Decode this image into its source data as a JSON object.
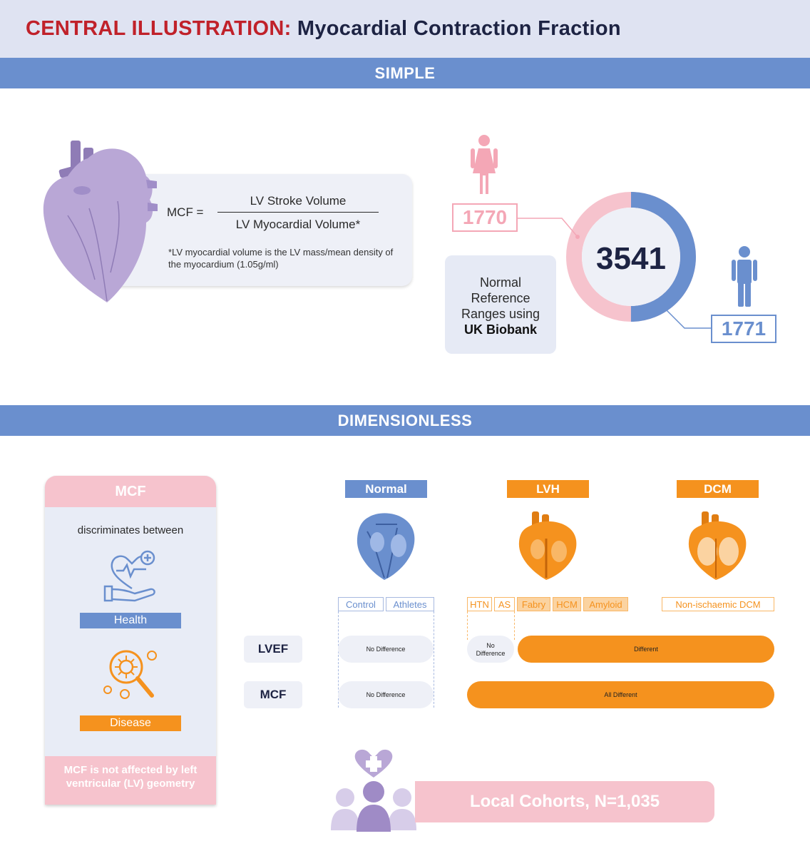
{
  "header": {
    "title_prefix": "CENTRAL ILLUSTRATION:",
    "title_main": "Myocardial Contraction Fraction"
  },
  "sections": {
    "simple": "SIMPLE",
    "dimensionless": "DIMENSIONLESS"
  },
  "formula": {
    "lhs": "MCF =",
    "numerator": "LV Stroke Volume",
    "denominator": "LV Myocardial Volume*",
    "note": "*LV myocardial volume is the LV mass/mean density of the myocardium (1.05g/ml)"
  },
  "biobank": {
    "total": "3541",
    "female_count": "1770",
    "male_count": "1771",
    "female_fraction": 0.4999,
    "ref_line1": "Normal",
    "ref_line2": "Reference",
    "ref_line3": "Ranges using",
    "ref_line4": "UK Biobank"
  },
  "mcf_panel": {
    "title": "MCF",
    "subtitle": "discriminates between",
    "health_label": "Health",
    "disease_label": "Disease",
    "footer": "MCF is not affected by left ventricular (LV) geometry"
  },
  "columns": {
    "normal": "Normal",
    "lvh": "LVH",
    "dcm": "DCM"
  },
  "subgroups": {
    "control": "Control",
    "athletes": "Athletes",
    "htn": "HTN",
    "as": "AS",
    "fabry": "Fabry",
    "hcm": "HCM",
    "amyloid": "Amyloid",
    "dcm": "Non-ischaemic DCM"
  },
  "rows": {
    "lvef": {
      "label": "LVEF",
      "normal": "No Difference",
      "lvh_early_line1": "No",
      "lvh_early_line2": "Difference",
      "rest": "Different"
    },
    "mcf": {
      "label": "MCF",
      "normal": "No Difference",
      "rest": "All Different"
    }
  },
  "cohort": {
    "label": "Local Cohorts, N=1,035"
  },
  "colors": {
    "red": "#c0212a",
    "navy": "#1d2343",
    "blue": "#6a8fce",
    "pink": "#f6c3cd",
    "orange": "#f5921e",
    "lavender": "#b9a7d6"
  }
}
